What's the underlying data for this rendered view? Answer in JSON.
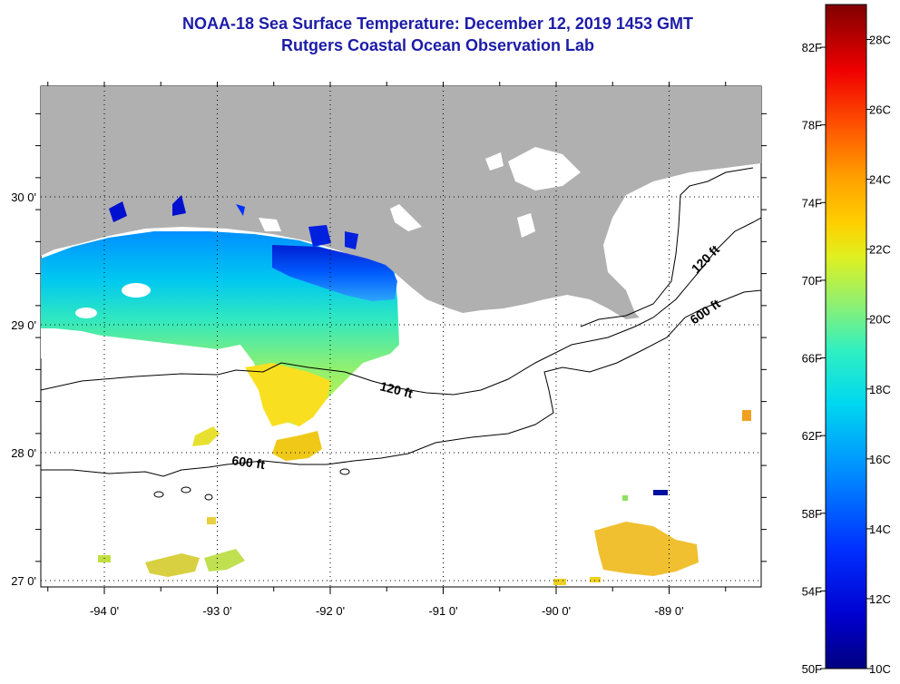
{
  "title": {
    "line1": "NOAA-18 Sea Surface Temperature:  December 12, 2019 1453 GMT",
    "line2": "Rutgers Coastal Ocean Observation Lab"
  },
  "map": {
    "lon_labels": [
      "-94 0'",
      "-93 0'",
      "-92 0'",
      "-91 0'",
      "-90 0'",
      "-89 0'"
    ],
    "lon_values": [
      -94,
      -93,
      -92,
      -91,
      -90,
      -89
    ],
    "lat_labels": [
      "30 0'",
      "29 0'",
      "28 0'",
      "27 0'"
    ],
    "lat_values": [
      30,
      29,
      28,
      27
    ],
    "contour_labels": {
      "inner_120_west": "120 ft",
      "inner_120_east": "120 ft",
      "outer_600_west": "600 ft",
      "outer_600_east": "600 ft"
    },
    "colors": {
      "land": "#b0b0b0",
      "cloud": "#ffffff",
      "contour": "#000000",
      "grid": "#000000"
    }
  },
  "colorbar": {
    "fahrenheit_labels": [
      "82F",
      "78F",
      "74F",
      "70F",
      "66F",
      "62F",
      "58F",
      "54F",
      "50F"
    ],
    "celsius_labels": [
      "28C",
      "26C",
      "24C",
      "22C",
      "20C",
      "18C",
      "16C",
      "14C",
      "12C",
      "10C"
    ],
    "range_celsius": [
      10,
      29
    ],
    "palette": [
      "#000080",
      "#0000ff",
      "#0080ff",
      "#00c0ff",
      "#00ffff",
      "#40ffc0",
      "#80ff80",
      "#c0ff40",
      "#ffff00",
      "#ffc000",
      "#ff8000",
      "#ff4000",
      "#ff0000",
      "#c00000",
      "#800000"
    ]
  }
}
